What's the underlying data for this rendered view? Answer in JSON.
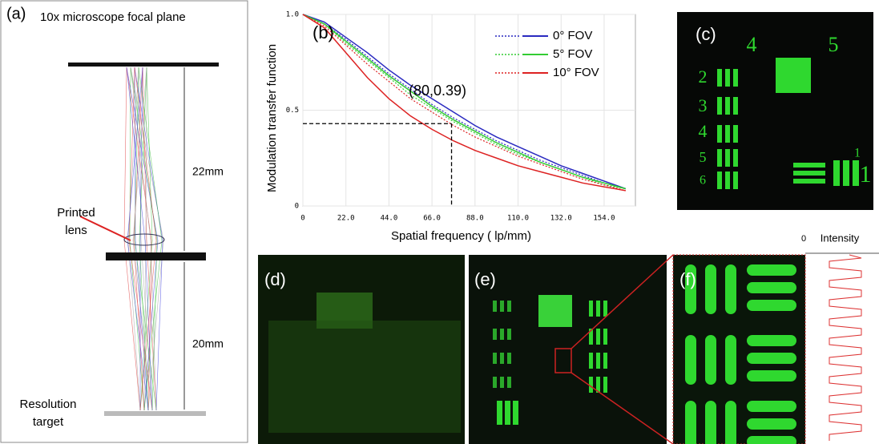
{
  "panel_a": {
    "label": "(a)",
    "top_label": "10x microscope focal plane",
    "upper_distance": "22mm",
    "lens_label": "Printed\nlens",
    "lower_distance": "20mm",
    "target_label": "Resolution\ntarget"
  },
  "chart_data": {
    "type": "line",
    "label": "(b)",
    "x_label": "Spatial frequency ( lp/mm)",
    "y_label": "Modulation transfer function",
    "x": [
      0,
      11,
      22,
      33,
      44,
      55,
      66,
      77,
      88,
      99,
      110,
      121,
      132,
      143,
      154,
      165
    ],
    "series": [
      {
        "name": "0° FOV",
        "color": "#2a2ac0",
        "values": [
          1.0,
          0.96,
          0.88,
          0.8,
          0.71,
          0.63,
          0.56,
          0.49,
          0.42,
          0.36,
          0.31,
          0.26,
          0.21,
          0.17,
          0.13,
          0.09
        ],
        "dotted_values": [
          1.0,
          0.95,
          0.87,
          0.78,
          0.69,
          0.61,
          0.53,
          0.46,
          0.4,
          0.34,
          0.29,
          0.24,
          0.2,
          0.16,
          0.12,
          0.09
        ]
      },
      {
        "name": "5° FOV",
        "color": "#33cc33",
        "values": [
          1.0,
          0.95,
          0.86,
          0.77,
          0.68,
          0.6,
          0.52,
          0.45,
          0.39,
          0.33,
          0.28,
          0.23,
          0.19,
          0.15,
          0.12,
          0.09
        ],
        "dotted_values": [
          1.0,
          0.95,
          0.85,
          0.76,
          0.67,
          0.58,
          0.51,
          0.44,
          0.38,
          0.32,
          0.27,
          0.23,
          0.19,
          0.15,
          0.11,
          0.09
        ]
      },
      {
        "name": "10° FOV",
        "color": "#dd2222",
        "values": [
          1.0,
          0.93,
          0.8,
          0.67,
          0.56,
          0.47,
          0.4,
          0.34,
          0.29,
          0.25,
          0.21,
          0.18,
          0.15,
          0.12,
          0.1,
          0.08
        ],
        "dotted_values": [
          1.0,
          0.94,
          0.84,
          0.74,
          0.65,
          0.56,
          0.49,
          0.42,
          0.36,
          0.31,
          0.26,
          0.22,
          0.18,
          0.14,
          0.11,
          0.08
        ]
      }
    ],
    "xlim": [
      0,
      170
    ],
    "ylim": [
      0,
      1
    ],
    "xticks": [
      0,
      {
        "value": 22,
        "label": "22.0"
      },
      {
        "value": 44,
        "label": "44.0"
      },
      {
        "value": 66,
        "label": "66.0"
      },
      {
        "value": 88,
        "label": "88.0"
      },
      {
        "value": 110,
        "label": "110.0"
      },
      {
        "value": 132,
        "label": "132.0"
      },
      {
        "value": 154,
        "label": "154.0"
      }
    ],
    "yticks": [
      0,
      0.5,
      {
        "value": 1,
        "label": "1.0"
      }
    ],
    "grid": true,
    "annotation": "(80,0.39)",
    "marker_x": 76,
    "marker_y": 0.43
  },
  "panel_c": {
    "label": "(c)",
    "numbers": [
      "4",
      "5",
      "2",
      "3",
      "4",
      "5",
      "6",
      "1",
      "1"
    ]
  },
  "panel_d": {
    "label": "(d)"
  },
  "panel_e": {
    "label": "(e)"
  },
  "panel_f": {
    "label": "(f)",
    "axis_label": "Intensity",
    "axis_zero": "0"
  }
}
